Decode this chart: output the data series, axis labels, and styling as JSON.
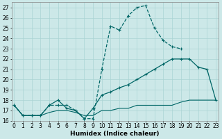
{
  "xlabel": "Humidex (Indice chaleur)",
  "x_values": [
    0,
    1,
    2,
    3,
    4,
    5,
    6,
    7,
    8,
    9,
    10,
    11,
    12,
    13,
    14,
    15,
    16,
    17,
    18,
    19,
    20,
    21,
    22,
    23
  ],
  "line1_y": [
    17.5,
    16.5,
    16.5,
    16.5,
    17.5,
    17.5,
    17.5,
    17.0,
    16.2,
    16.2,
    21.0,
    25.2,
    24.8,
    26.2,
    27.0,
    27.2,
    25.0,
    23.8,
    23.2,
    23.0,
    null,
    null,
    null,
    null
  ],
  "line2_y": [
    17.5,
    16.5,
    16.5,
    16.5,
    17.5,
    18.0,
    17.2,
    17.0,
    16.2,
    17.2,
    18.5,
    18.8,
    19.2,
    19.5,
    20.0,
    20.5,
    21.0,
    21.5,
    22.0,
    22.0,
    22.0,
    21.2,
    21.0,
    18.0
  ],
  "line3_y": [
    17.5,
    16.5,
    16.5,
    16.5,
    16.8,
    17.0,
    17.0,
    16.8,
    16.5,
    16.5,
    17.0,
    17.0,
    17.2,
    17.2,
    17.5,
    17.5,
    17.5,
    17.5,
    17.5,
    17.8,
    18.0,
    18.0,
    18.0,
    18.0
  ],
  "bg_color": "#cce8e8",
  "grid_color": "#aad4d4",
  "line_color": "#006666",
  "ylim_min": 16,
  "ylim_max": 27.5,
  "ytick_min": 16,
  "ytick_max": 27,
  "xlim_min": -0.3,
  "xlim_max": 23.3
}
